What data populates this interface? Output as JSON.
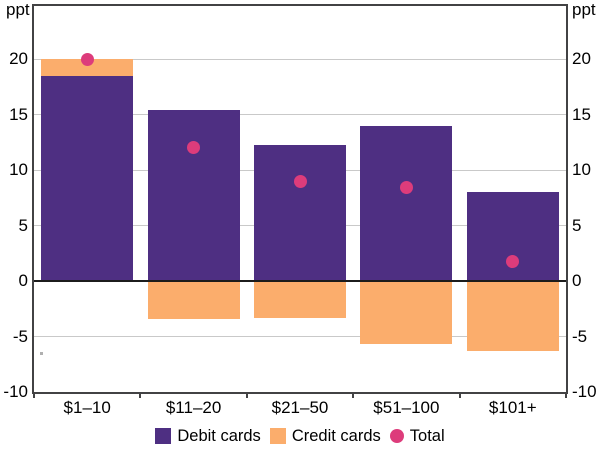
{
  "axis": {
    "unit_left": "ppt",
    "unit_right": "ppt"
  },
  "legend": [
    {
      "label": "Debit cards",
      "marker": "square",
      "color": "#4E2F82"
    },
    {
      "label": "Credit cards",
      "marker": "square",
      "color": "#FBAD6C"
    },
    {
      "label": "Total",
      "marker": "circle",
      "color": "#DD3C7B"
    }
  ],
  "colors": {
    "debit": "#4E2F82",
    "credit": "#FBAD6C",
    "total": "#DD3C7B",
    "grid": "#c9c9c9",
    "zero_line": "#1c1c1c",
    "frame": "#424244",
    "text": "#000000"
  },
  "chart_data": {
    "type": "bar",
    "subtype": "stacked-bars-with-dot-overlay",
    "categories": [
      "$1–10",
      "$11–20",
      "$21–50",
      "$51–100",
      "$101+"
    ],
    "series": [
      {
        "name": "Debit cards",
        "type": "bar",
        "color": "#4E2F82",
        "values": [
          18.5,
          15.4,
          12.3,
          14.0,
          8.0
        ]
      },
      {
        "name": "Credit cards",
        "type": "bar",
        "color": "#FBAD6C",
        "values": [
          1.5,
          -3.4,
          -3.3,
          -5.7,
          -6.3
        ]
      },
      {
        "name": "Total",
        "type": "scatter",
        "color": "#DD3C7B",
        "values": [
          20.0,
          12.0,
          9.0,
          8.4,
          1.8
        ]
      }
    ],
    "title": "",
    "xlabel": "",
    "ylabel": "ppt",
    "ylim": [
      -10,
      24.8
    ],
    "yticks": [
      -10,
      -5,
      0,
      5,
      10,
      15,
      20
    ],
    "grid": true,
    "legend_position": "bottom"
  }
}
